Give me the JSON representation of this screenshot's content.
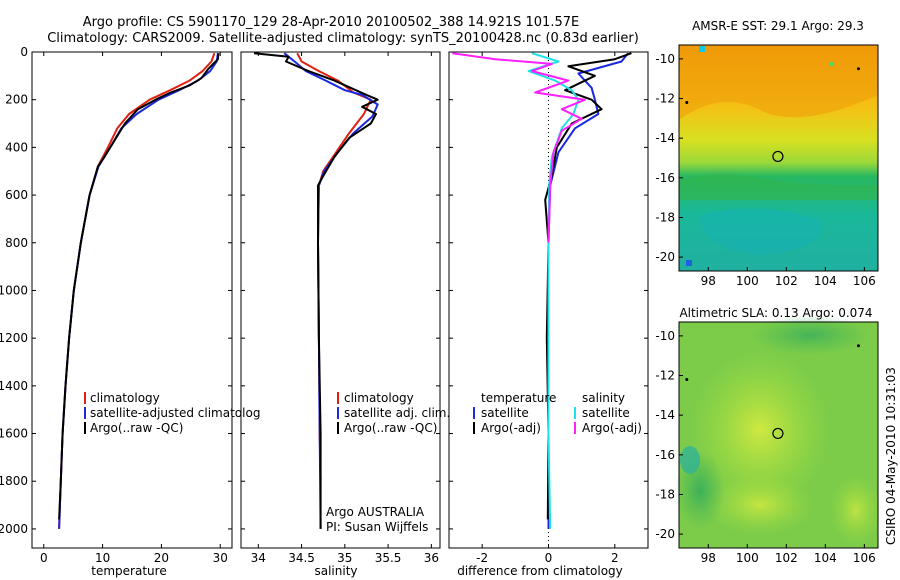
{
  "title": {
    "line1": "Argo profile: CS 5901170_129 28-Apr-2010 20100502_388 14.921S 101.57E",
    "line2": "Climatology: CARS2009. Satellite-adjusted climatology: synTS_20100428.nc (0.83d earlier)"
  },
  "colors": {
    "climatology": "#e02010",
    "satellite": "#1a28e0",
    "argo": "#000000",
    "sal_satellite": "#20e0e8",
    "sal_argo": "#ff20ff"
  },
  "chart_data": [
    {
      "type": "line",
      "xlabel": "temperature",
      "ylabel": "",
      "xlim": [
        -2,
        32
      ],
      "ylim": [
        2080,
        0
      ],
      "xticks": [
        0,
        10,
        20,
        30
      ],
      "yticks": [
        0,
        200,
        400,
        600,
        800,
        1000,
        1200,
        1400,
        1600,
        1800,
        2000
      ],
      "legend": [
        "climatology",
        "satellite-adjusted climatolog",
        "Argo(..raw -QC)"
      ],
      "series": [
        {
          "name": "climatology",
          "color_key": "climatology",
          "points": [
            [
              29.0,
              5
            ],
            [
              28.5,
              40
            ],
            [
              27.0,
              80
            ],
            [
              24.8,
              120
            ],
            [
              21.5,
              160
            ],
            [
              18.0,
              200
            ],
            [
              14.5,
              260
            ],
            [
              12.5,
              320
            ],
            [
              10.9,
              400
            ],
            [
              9.2,
              480
            ],
            [
              7.8,
              600
            ],
            [
              6.3,
              800
            ],
            [
              5.1,
              1000
            ],
            [
              4.3,
              1200
            ],
            [
              3.7,
              1400
            ],
            [
              3.2,
              1600
            ],
            [
              2.9,
              1800
            ],
            [
              2.6,
              2000
            ]
          ]
        },
        {
          "name": "satellite-adjusted climatolog",
          "color_key": "satellite",
          "points": [
            [
              29.6,
              5
            ],
            [
              29.4,
              40
            ],
            [
              28.3,
              80
            ],
            [
              26.2,
              120
            ],
            [
              23.0,
              160
            ],
            [
              19.5,
              200
            ],
            [
              15.8,
              260
            ],
            [
              13.2,
              320
            ],
            [
              11.3,
              400
            ],
            [
              9.3,
              480
            ],
            [
              7.8,
              600
            ],
            [
              6.3,
              800
            ],
            [
              5.1,
              1000
            ],
            [
              4.3,
              1200
            ],
            [
              3.7,
              1400
            ],
            [
              3.2,
              1600
            ],
            [
              2.9,
              1800
            ],
            [
              2.6,
              2000
            ]
          ]
        },
        {
          "name": "Argo(..raw -QC)",
          "color_key": "argo",
          "points": [
            [
              29.7,
              5
            ],
            [
              29.6,
              30
            ],
            [
              28.0,
              70
            ],
            [
              26.8,
              110
            ],
            [
              24.8,
              140
            ],
            [
              21.6,
              170
            ],
            [
              19.0,
              200
            ],
            [
              16.0,
              240
            ],
            [
              13.8,
              300
            ],
            [
              11.8,
              380
            ],
            [
              10.3,
              440
            ],
            [
              9.2,
              480
            ],
            [
              7.8,
              600
            ],
            [
              6.3,
              800
            ],
            [
              5.1,
              1000
            ],
            [
              4.3,
              1200
            ],
            [
              3.7,
              1400
            ],
            [
              3.2,
              1600
            ],
            [
              2.9,
              1800
            ],
            [
              2.6,
              1960
            ]
          ]
        }
      ]
    },
    {
      "type": "line",
      "xlabel": "salinity",
      "xlim": [
        33.8,
        36.1
      ],
      "ylim": [
        2080,
        0
      ],
      "xticks": [
        34,
        34.5,
        35,
        35.5,
        36
      ],
      "legend": [
        "climatology",
        "satellite adj. clim.",
        "Argo(..raw -QC)"
      ],
      "annotation": [
        "Argo AUSTRALIA",
        "PI: Susan Wijffels"
      ],
      "series": [
        {
          "name": "climatology",
          "color_key": "climatology",
          "points": [
            [
              34.45,
              5
            ],
            [
              34.5,
              40
            ],
            [
              34.7,
              80
            ],
            [
              34.92,
              120
            ],
            [
              35.1,
              170
            ],
            [
              35.3,
              200
            ],
            [
              35.22,
              260
            ],
            [
              35.05,
              340
            ],
            [
              34.9,
              420
            ],
            [
              34.75,
              500
            ],
            [
              34.7,
              560
            ],
            [
              34.69,
              800
            ],
            [
              34.7,
              1200
            ],
            [
              34.71,
              1600
            ],
            [
              34.72,
              1800
            ]
          ]
        },
        {
          "name": "satellite adj. clim.",
          "color_key": "satellite",
          "points": [
            [
              34.3,
              5
            ],
            [
              34.42,
              40
            ],
            [
              34.55,
              80
            ],
            [
              34.78,
              120
            ],
            [
              35.0,
              160
            ],
            [
              35.2,
              180
            ],
            [
              35.38,
              220
            ],
            [
              35.32,
              270
            ],
            [
              35.1,
              340
            ],
            [
              34.92,
              420
            ],
            [
              34.76,
              500
            ],
            [
              34.7,
              560
            ],
            [
              34.69,
              800
            ],
            [
              34.7,
              1200
            ],
            [
              34.71,
              1600
            ],
            [
              34.72,
              2000
            ]
          ]
        },
        {
          "name": "Argo(..raw -QC)",
          "color_key": "argo",
          "points": [
            [
              33.95,
              5
            ],
            [
              34.35,
              20
            ],
            [
              34.32,
              40
            ],
            [
              34.58,
              80
            ],
            [
              34.88,
              120
            ],
            [
              35.25,
              180
            ],
            [
              35.38,
              200
            ],
            [
              35.2,
              230
            ],
            [
              35.36,
              260
            ],
            [
              35.3,
              300
            ],
            [
              35.05,
              360
            ],
            [
              34.88,
              440
            ],
            [
              34.75,
              520
            ],
            [
              34.69,
              560
            ],
            [
              34.69,
              800
            ],
            [
              34.7,
              1200
            ],
            [
              34.72,
              1600
            ],
            [
              34.72,
              2000
            ]
          ]
        }
      ]
    },
    {
      "type": "line",
      "xlabel": "difference from climatology",
      "xlim": [
        -3,
        3
      ],
      "ylim": [
        2080,
        0
      ],
      "xticks": [
        -2,
        0,
        2
      ],
      "legend_left": [
        "temperature",
        "satellite",
        "Argo(-adj)"
      ],
      "legend_right": [
        "salinity",
        "satellite",
        "Argo(-adj)"
      ],
      "series": [
        {
          "name": "satellite",
          "group": "temperature",
          "color_key": "satellite",
          "points": [
            [
              2.4,
              5
            ],
            [
              2.2,
              40
            ],
            [
              0.9,
              90
            ],
            [
              1.3,
              150
            ],
            [
              1.4,
              200
            ],
            [
              1.5,
              260
            ],
            [
              0.8,
              320
            ],
            [
              0.3,
              420
            ],
            [
              0.05,
              560
            ],
            [
              0.0,
              800
            ],
            [
              0.0,
              1200
            ],
            [
              0.0,
              1600
            ],
            [
              0.0,
              2000
            ]
          ]
        },
        {
          "name": "Argo(-adj)",
          "group": "temperature",
          "color_key": "argo",
          "points": [
            [
              2.5,
              5
            ],
            [
              2.0,
              30
            ],
            [
              0.6,
              60
            ],
            [
              1.4,
              100
            ],
            [
              0.5,
              160
            ],
            [
              1.3,
              200
            ],
            [
              1.6,
              240
            ],
            [
              0.7,
              300
            ],
            [
              0.25,
              400
            ],
            [
              0.1,
              520
            ],
            [
              -0.1,
              620
            ],
            [
              0.0,
              800
            ],
            [
              -0.05,
              1200
            ],
            [
              0.0,
              1600
            ],
            [
              -0.02,
              1960
            ]
          ]
        },
        {
          "name": "satellite",
          "group": "salinity",
          "color_key": "sal_satellite",
          "points": [
            [
              -0.5,
              5
            ],
            [
              0.3,
              40
            ],
            [
              -0.6,
              80
            ],
            [
              0.2,
              120
            ],
            [
              0.7,
              160
            ],
            [
              0.9,
              200
            ],
            [
              0.75,
              260
            ],
            [
              0.4,
              320
            ],
            [
              0.1,
              440
            ],
            [
              0.02,
              560
            ],
            [
              0.0,
              800
            ],
            [
              0.0,
              1200
            ],
            [
              0.0,
              1600
            ],
            [
              0.05,
              2000
            ]
          ]
        },
        {
          "name": "Argo(-adj)",
          "group": "salinity",
          "color_key": "sal_argo",
          "points": [
            [
              -2.9,
              5
            ],
            [
              -1.6,
              30
            ],
            [
              0.1,
              50
            ],
            [
              -0.5,
              80
            ],
            [
              0.6,
              120
            ],
            [
              -0.4,
              170
            ],
            [
              1.1,
              200
            ],
            [
              0.4,
              240
            ],
            [
              1.0,
              280
            ],
            [
              0.4,
              330
            ],
            [
              0.15,
              420
            ],
            [
              0.05,
              560
            ],
            [
              0.0,
              800
            ]
          ]
        }
      ]
    },
    {
      "type": "heatmap",
      "title": "AMSR-E SST: 29.1  Argo: 29.3",
      "xticks": [
        98,
        100,
        102,
        104,
        106
      ],
      "yticks": [
        -10,
        -12,
        -14,
        -16,
        -18,
        -20
      ],
      "xlim": [
        96.5,
        106.7
      ],
      "ylim": [
        -20.7,
        -9.3
      ],
      "marker": [
        101.57,
        -14.921
      ]
    },
    {
      "type": "heatmap",
      "title": "Altimetric SLA: 0.13  Argo: 0.074",
      "xticks": [
        98,
        100,
        102,
        104,
        106
      ],
      "yticks": [
        -10,
        -12,
        -14,
        -16,
        -18,
        -20
      ],
      "xlim": [
        96.5,
        106.7
      ],
      "ylim": [
        -20.7,
        -9.3
      ],
      "marker": [
        101.57,
        -14.921
      ]
    }
  ],
  "side_label": "CSIRO 04-May-2010 10:31:03"
}
